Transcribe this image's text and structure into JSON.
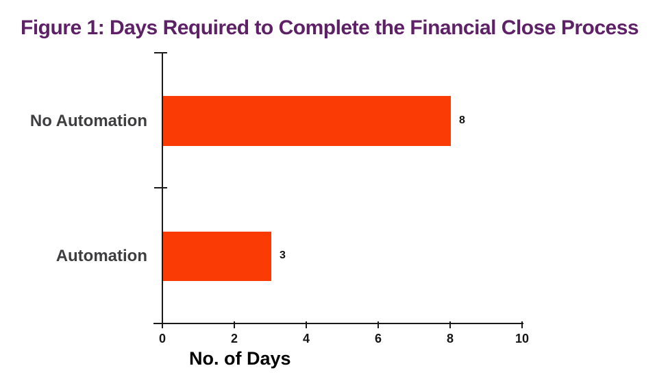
{
  "figure_title": "Figure 1: Days Required to Complete the Financial Close Process",
  "chart_data": {
    "type": "bar",
    "orientation": "horizontal",
    "title": "Figure 1: Days Required to Complete the Financial Close Process",
    "categories": [
      "No Automation",
      "Automation"
    ],
    "values": [
      8,
      3
    ],
    "data_labels": [
      "8",
      "3"
    ],
    "xlabel": "No. of Days",
    "ylabel": "",
    "xlim": [
      0,
      10
    ],
    "x_ticks": [
      0,
      2,
      4,
      6,
      8,
      10
    ],
    "grid": false,
    "legend": false
  },
  "colors": {
    "title": "#5e2066",
    "bar": "#fb3b05",
    "category_label": "#3e3e40",
    "axis": "#1a1a1a"
  }
}
